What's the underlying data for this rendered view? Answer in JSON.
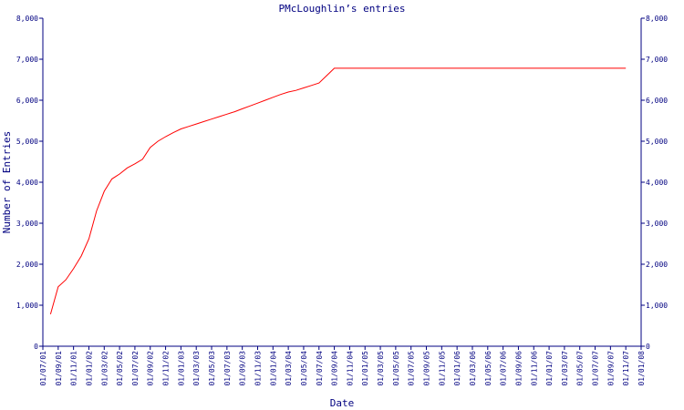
{
  "chart_data": {
    "type": "line",
    "title": "PMcLoughlin’s entries",
    "x_label": "Date",
    "y_label": "Number of Entries",
    "categories": [
      "01/07/01",
      null,
      "01/09/01",
      null,
      "01/11/01",
      null,
      "01/01/02",
      null,
      "01/03/02",
      null,
      "01/05/02",
      null,
      "01/07/02",
      null,
      "01/09/02",
      null,
      "01/11/02",
      null,
      "01/01/03",
      null,
      "01/03/03",
      null,
      "01/05/03",
      null,
      "01/07/03",
      null,
      "01/09/03",
      null,
      "01/11/03",
      null,
      "01/01/04",
      null,
      "01/03/04",
      null,
      "01/05/04",
      null,
      "01/07/04",
      null,
      "01/09/04",
      null,
      "01/11/04",
      null,
      "01/01/05",
      null,
      "01/03/05",
      null,
      "01/05/05",
      null,
      "01/07/05",
      null,
      "01/09/05",
      null,
      "01/11/05",
      null,
      "01/01/06",
      null,
      "01/03/06",
      null,
      "01/05/06",
      null,
      "01/07/06",
      null,
      "01/09/06",
      null,
      "01/11/06",
      null,
      "01/01/07",
      null,
      "01/03/07",
      null,
      "01/05/07",
      null,
      "01/07/07",
      null,
      "01/09/07",
      null,
      "01/11/07",
      null,
      "01/01/08"
    ],
    "series": [
      {
        "color": "#ff0000",
        "values": [
          null,
          780,
          1450,
          1620,
          1890,
          2200,
          2620,
          3300,
          3780,
          4080,
          4200,
          4350,
          4450,
          4560,
          4850,
          5000,
          5110,
          5210,
          5300,
          5360,
          5420,
          5480,
          5540,
          5600,
          5660,
          5720,
          5790,
          5860,
          5930,
          6000,
          6070,
          6140,
          6200,
          6240,
          6300,
          6360,
          6420,
          6600,
          6780,
          6780,
          6780,
          6780,
          6780,
          6780,
          6780,
          6780,
          6780,
          6780,
          6780,
          6780,
          6780,
          6780,
          6780,
          6780,
          6780,
          6780,
          6780,
          6780,
          6780,
          6780,
          6780,
          6780,
          6780,
          6780,
          6780,
          6780,
          6780,
          6780,
          6780,
          6780,
          6780,
          6780,
          6780,
          6780,
          6780,
          6780,
          6780,
          null,
          null
        ]
      }
    ],
    "ylim": [
      0,
      8000
    ],
    "yticks": [
      0,
      {
        "value": 1000,
        "label": "1,000"
      },
      {
        "value": 2000,
        "label": "2,000"
      },
      {
        "value": 3000,
        "label": "3,000"
      },
      {
        "value": 4000,
        "label": "4,000"
      },
      {
        "value": 5000,
        "label": "5,000"
      },
      {
        "value": 6000,
        "label": "6,000"
      },
      {
        "value": 7000,
        "label": "7,000"
      },
      {
        "value": 8000,
        "label": "8,000"
      }
    ],
    "y2lim": [
      0,
      8000
    ],
    "y2ticks": [
      0,
      {
        "value": 1000,
        "label": "1,000"
      },
      {
        "value": 2000,
        "label": "2,000"
      },
      {
        "value": 3000,
        "label": "3,000"
      },
      {
        "value": 4000,
        "label": "4,000"
      },
      {
        "value": 5000,
        "label": "5,000"
      },
      {
        "value": 6000,
        "label": "6,000"
      },
      {
        "value": 7000,
        "label": "7,000"
      },
      {
        "value": 8000,
        "label": "8,000"
      }
    ]
  }
}
